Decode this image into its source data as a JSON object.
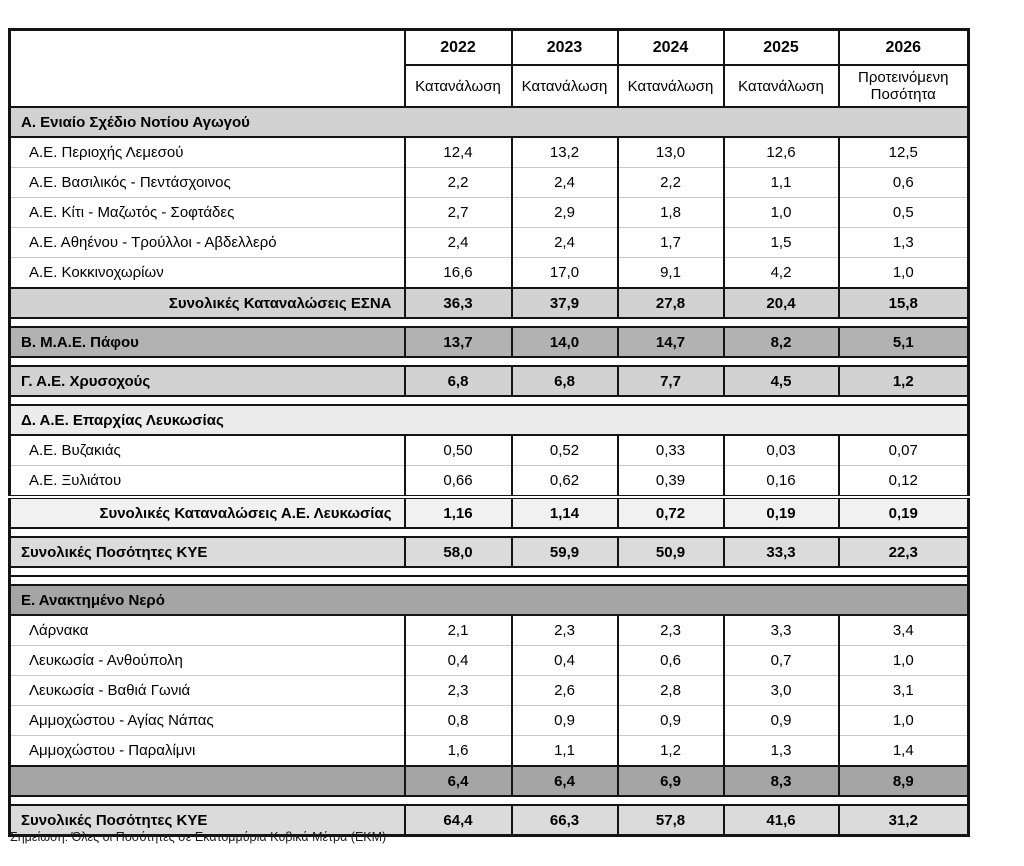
{
  "header": {
    "years": [
      "2022",
      "2023",
      "2024",
      "2025",
      "2026"
    ],
    "subs": [
      "Κατανάλωση",
      "Κατανάλωση",
      "Κατανάλωση",
      "Κατανάλωση",
      "Προτεινόμενη Ποσότητα"
    ]
  },
  "rows": [
    {
      "type": "section",
      "variant": "light",
      "label": "Α. Ενιαίο Σχέδιο Νοτίου Αγωγού"
    },
    {
      "type": "data",
      "label": "Α.Ε. Περιοχής Λεμεσού",
      "values": [
        "12,4",
        "13,2",
        "13,0",
        "12,6",
        "12,5"
      ]
    },
    {
      "type": "data",
      "label": "Α.Ε. Βασιλικός - Πεντάσχοινος",
      "values": [
        "2,2",
        "2,4",
        "2,2",
        "1,1",
        "0,6"
      ]
    },
    {
      "type": "data",
      "label": "Α.Ε. Κίτι - Μαζωτός - Σοφτάδες",
      "values": [
        "2,7",
        "2,9",
        "1,8",
        "1,0",
        "0,5"
      ]
    },
    {
      "type": "data",
      "label": "Α.Ε. Αθηένου - Τρούλλοι - Αβδελλερό",
      "values": [
        "2,4",
        "2,4",
        "1,7",
        "1,5",
        "1,3"
      ]
    },
    {
      "type": "data",
      "label": "Α.Ε. Κοκκινοχωρίων",
      "values": [
        "16,6",
        "17,0",
        "9,1",
        "4,2",
        "1,0"
      ]
    },
    {
      "type": "total",
      "variant": "light",
      "align": "right",
      "label": "Συνολικές Καταναλώσεις ΕΣΝΑ",
      "values": [
        "36,3",
        "37,9",
        "27,8",
        "20,4",
        "15,8"
      ]
    },
    {
      "type": "gap"
    },
    {
      "type": "total",
      "variant": "mid",
      "align": "left",
      "label": "Β. Μ.Α.Ε. Πάφου",
      "values": [
        "13,7",
        "14,0",
        "14,7",
        "8,2",
        "5,1"
      ]
    },
    {
      "type": "gap"
    },
    {
      "type": "total",
      "variant": "light",
      "align": "left",
      "label": "Γ. Α.Ε. Χρυσοχούς",
      "values": [
        "6,8",
        "6,8",
        "7,7",
        "4,5",
        "1,2"
      ]
    },
    {
      "type": "gap"
    },
    {
      "type": "section",
      "variant": "bandd",
      "label": "Δ. Α.Ε. Επαρχίας Λευκωσίας"
    },
    {
      "type": "data",
      "label": "Α.Ε. Βυζακιάς",
      "values": [
        "0,50",
        "0,52",
        "0,33",
        "0,03",
        "0,07"
      ]
    },
    {
      "type": "data",
      "label": "Α.Ε. Ξυλιάτου",
      "values": [
        "0,66",
        "0,62",
        "0,39",
        "0,16",
        "0,12"
      ]
    },
    {
      "type": "total",
      "variant": "pale",
      "align": "right",
      "dbl": true,
      "label": "Συνολικές Καταναλώσεις Α.Ε. Λευκωσίας",
      "values": [
        "1,16",
        "1,14",
        "0,72",
        "0,19",
        "0,19"
      ]
    },
    {
      "type": "gap"
    },
    {
      "type": "total",
      "variant": "kye",
      "align": "left",
      "label": "Συνολικές Ποσότητες ΚΥΕ",
      "values": [
        "58,0",
        "59,9",
        "50,9",
        "33,3",
        "22,3"
      ]
    },
    {
      "type": "gap"
    },
    {
      "type": "gap"
    },
    {
      "type": "section",
      "variant": "dark",
      "label": "Ε. Ανακτημένο Νερό"
    },
    {
      "type": "data",
      "label": "Λάρνακα",
      "values": [
        "2,1",
        "2,3",
        "2,3",
        "3,3",
        "3,4"
      ]
    },
    {
      "type": "data",
      "label": "Λευκωσία - Ανθούπολη",
      "values": [
        "0,4",
        "0,4",
        "0,6",
        "0,7",
        "1,0"
      ]
    },
    {
      "type": "data",
      "label": "Λευκωσία - Βαθιά Γωνιά",
      "values": [
        "2,3",
        "2,6",
        "2,8",
        "3,0",
        "3,1"
      ]
    },
    {
      "type": "data",
      "label": "Αμμοχώστου - Αγίας Νάπας",
      "values": [
        "0,8",
        "0,9",
        "0,9",
        "0,9",
        "1,0"
      ]
    },
    {
      "type": "data",
      "label": "Αμμοχώστου - Παραλίμνι",
      "values": [
        "1,6",
        "1,1",
        "1,2",
        "1,3",
        "1,4"
      ]
    },
    {
      "type": "total",
      "variant": "dark",
      "align": "left",
      "label": "",
      "values": [
        "6,4",
        "6,4",
        "6,9",
        "8,3",
        "8,9"
      ]
    },
    {
      "type": "gap"
    },
    {
      "type": "total",
      "variant": "kye",
      "align": "left",
      "label": "Συνολικές Ποσότητες ΚΥΕ",
      "values": [
        "64,4",
        "66,3",
        "57,8",
        "41,6",
        "31,2"
      ]
    }
  ],
  "note": "Σημείωση: Όλες οι Ποσότητες σε Εκατομμύρια Κυβικά Μέτρα (ΕΚΜ)",
  "colors": {
    "light": "#d2d2d2",
    "mid": "#b2b2b2",
    "pale": "#f1f1f1",
    "band_d": "#ececec",
    "kye": "#dbdbdb",
    "dark": "#a5a5a5",
    "border_strong": "#141414",
    "border_light": "#c9c9c9"
  }
}
